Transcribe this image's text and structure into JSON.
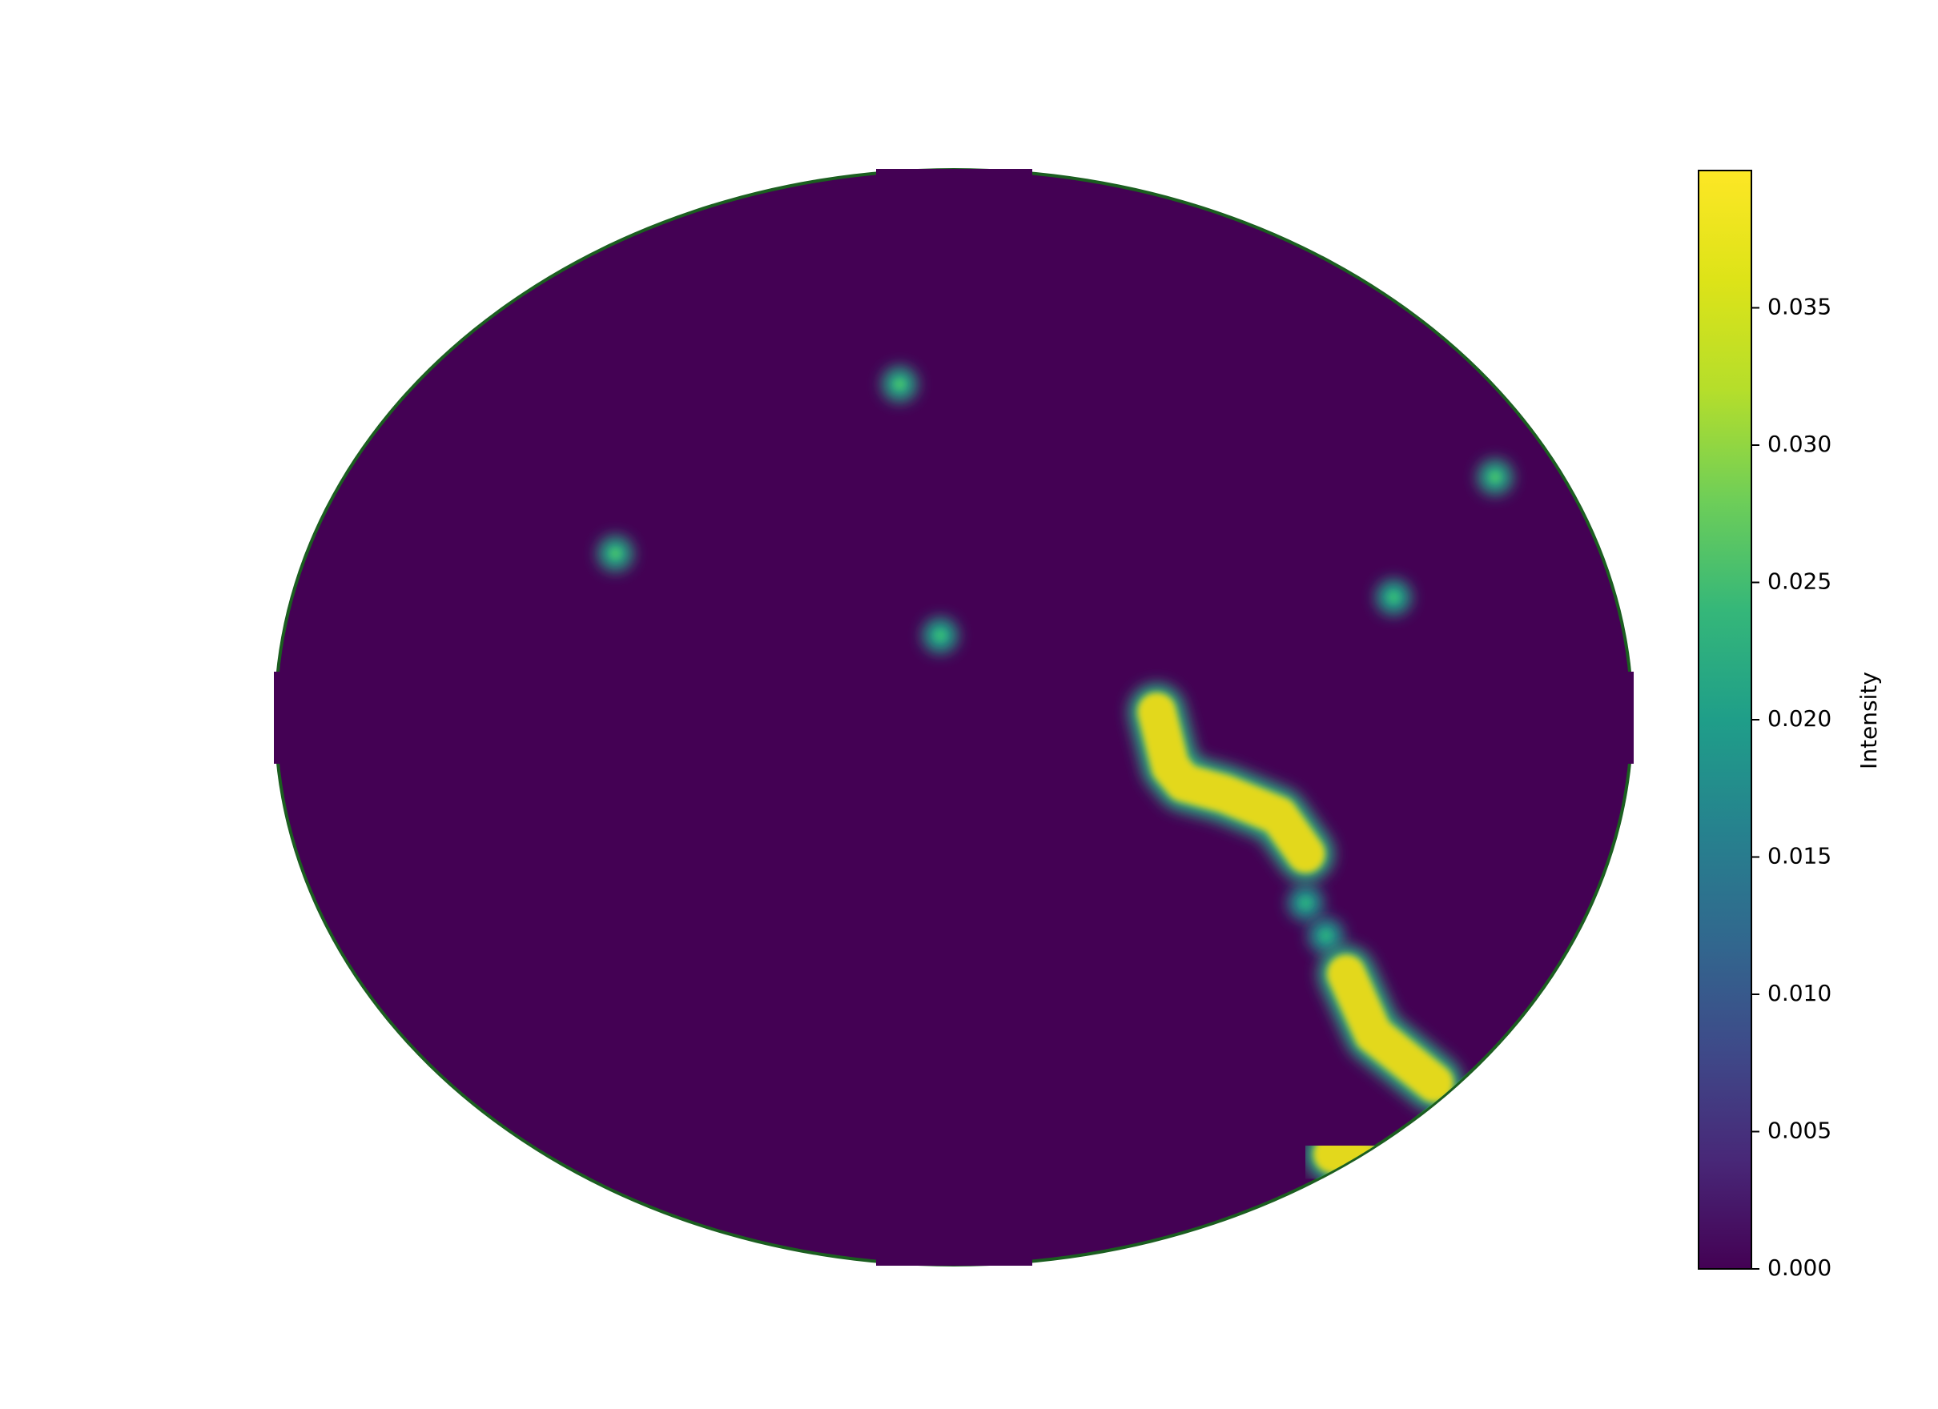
{
  "chart_data": {
    "type": "heatmap",
    "title": "",
    "xlabel": "",
    "ylabel": "",
    "axes_visible": false,
    "region_shape": "ellipse",
    "region_boundary_color": "#1b5e20",
    "colormap": "viridis",
    "colorbar": {
      "label": "Intensity",
      "vmin": 0.0,
      "vmax": 0.04,
      "ticks": [
        0.0,
        0.005,
        0.01,
        0.015,
        0.02,
        0.025,
        0.03,
        0.035
      ],
      "tick_labels": [
        "0.000",
        "0.005",
        "0.010",
        "0.015",
        "0.020",
        "0.025",
        "0.030",
        "0.035"
      ],
      "placement": "right"
    },
    "x_range": [
      -1,
      1
    ],
    "y_range": [
      -1,
      1
    ],
    "background_value": 0.0,
    "hotspots": [
      {
        "x": -0.08,
        "y": 0.61,
        "peak": 0.025
      },
      {
        "x": -0.5,
        "y": 0.3,
        "peak": 0.025
      },
      {
        "x": -0.02,
        "y": 0.15,
        "peak": 0.024
      },
      {
        "x": 0.8,
        "y": 0.44,
        "peak": 0.025
      },
      {
        "x": 0.65,
        "y": 0.22,
        "peak": 0.024
      },
      {
        "x": 0.52,
        "y": -0.34,
        "peak": 0.022
      },
      {
        "x": 0.55,
        "y": -0.4,
        "peak": 0.022
      }
    ],
    "ridges": [
      {
        "points": [
          [
            0.3,
            0.01
          ],
          [
            0.32,
            -0.09
          ],
          [
            0.34,
            -0.12
          ],
          [
            0.4,
            -0.14
          ],
          [
            0.48,
            -0.18
          ],
          [
            0.52,
            -0.25
          ]
        ],
        "peak": 0.039
      },
      {
        "points": [
          [
            0.58,
            -0.47
          ],
          [
            0.62,
            -0.58
          ],
          [
            0.66,
            -0.62
          ],
          [
            0.71,
            -0.67
          ]
        ],
        "peak": 0.039
      },
      {
        "points": [
          [
            0.56,
            -0.8
          ],
          [
            0.6,
            -0.81
          ],
          [
            0.64,
            -0.83
          ]
        ],
        "peak": 0.039
      }
    ]
  }
}
